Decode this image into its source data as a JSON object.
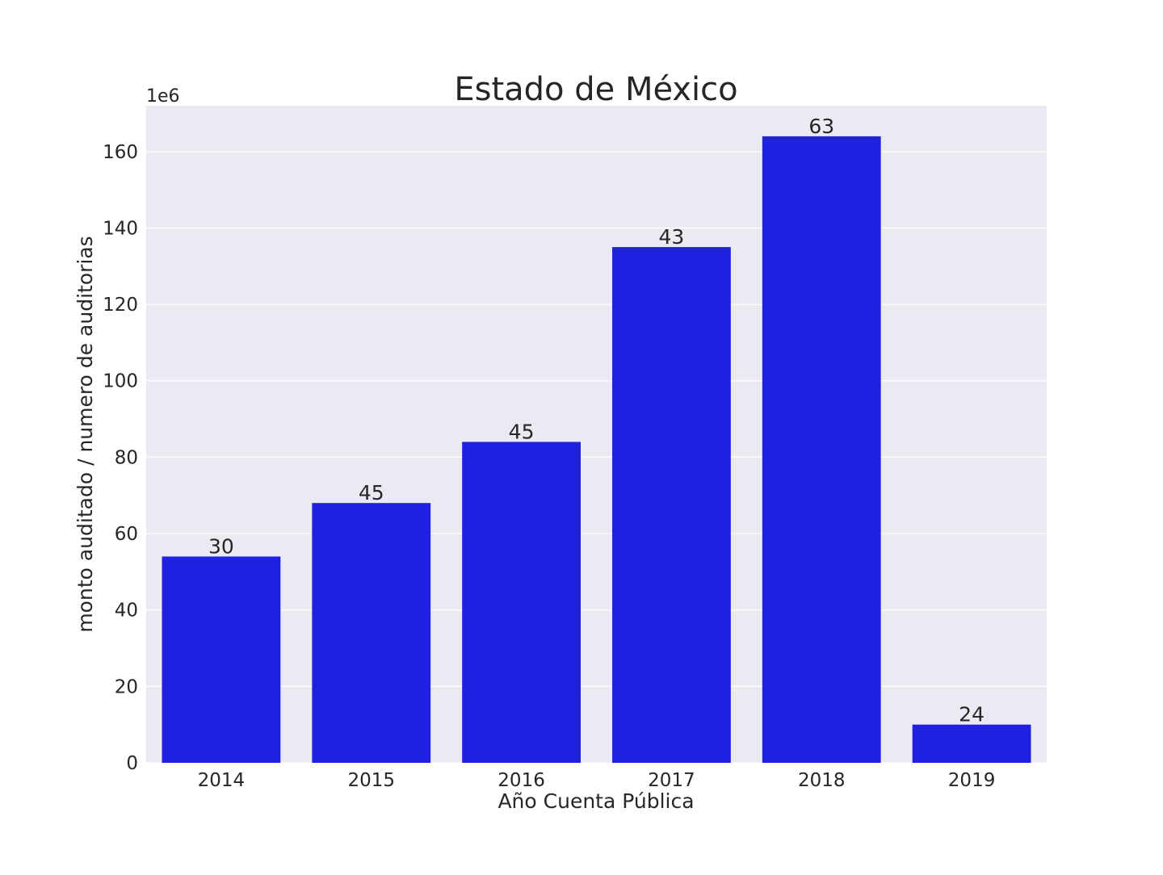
{
  "chart_data": {
    "type": "bar",
    "title": "Estado de México",
    "xlabel": "Año Cuenta Pública",
    "ylabel": "monto auditado / numero de auditorias",
    "y_offset_label": "1e6",
    "categories": [
      "2014",
      "2015",
      "2016",
      "2017",
      "2018",
      "2019"
    ],
    "values": [
      54.0,
      68.0,
      84.0,
      135.0,
      164.0,
      10.0
    ],
    "bar_labels": [
      "30",
      "45",
      "45",
      "43",
      "63",
      "24"
    ],
    "y_ticks": [
      0,
      20,
      40,
      60,
      80,
      100,
      120,
      140,
      160
    ],
    "ylim": [
      0,
      172
    ],
    "grid": true,
    "colors": {
      "bar": "#2020e0",
      "plot_background": "#eaeaf2",
      "grid": "#ffffff",
      "text": "#262626"
    }
  }
}
